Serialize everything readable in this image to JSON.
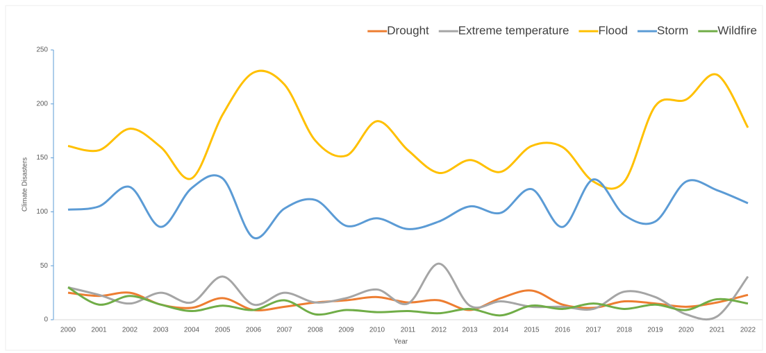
{
  "chart_data": {
    "type": "line",
    "x_label": "Year",
    "y_label": "Climate Disasters",
    "categories": [
      "2000",
      "2001",
      "2002",
      "2003",
      "2004",
      "2005",
      "2006",
      "2007",
      "2008",
      "2009",
      "2010",
      "2011",
      "2012",
      "2013",
      "2014",
      "2015",
      "2016",
      "2017",
      "2018",
      "2019",
      "2020",
      "2021",
      "2022"
    ],
    "series": [
      {
        "name": "Drought",
        "color": "#ed7d31",
        "values": [
          25,
          22,
          25,
          14,
          11,
          20,
          9,
          12,
          16,
          18,
          21,
          16,
          18,
          9,
          20,
          27,
          14,
          11,
          17,
          15,
          12,
          16,
          23
        ]
      },
      {
        "name": "Extreme temperature",
        "color": "#a5a5a5",
        "values": [
          30,
          23,
          15,
          25,
          16,
          40,
          14,
          25,
          16,
          20,
          28,
          15,
          52,
          13,
          17,
          12,
          12,
          10,
          26,
          21,
          5,
          3,
          40
        ]
      },
      {
        "name": "Flood",
        "color": "#ffc000",
        "values": [
          161,
          157,
          177,
          160,
          131,
          190,
          229,
          218,
          166,
          152,
          184,
          157,
          136,
          148,
          137,
          161,
          160,
          128,
          128,
          198,
          204,
          227,
          178
        ]
      },
      {
        "name": "Storm",
        "color": "#5b9bd5",
        "values": [
          102,
          105,
          123,
          86,
          122,
          131,
          76,
          103,
          111,
          87,
          94,
          84,
          91,
          105,
          99,
          121,
          86,
          130,
          97,
          91,
          128,
          120,
          108
        ]
      },
      {
        "name": "Wildfire",
        "color": "#70ad47",
        "values": [
          30,
          14,
          22,
          14,
          8,
          13,
          9,
          18,
          5,
          9,
          7,
          8,
          6,
          10,
          4,
          13,
          10,
          15,
          10,
          14,
          9,
          19,
          15
        ]
      }
    ],
    "ylim": [
      0,
      250
    ],
    "yticks": [
      0,
      50,
      100,
      150,
      200,
      250
    ],
    "smooth": true,
    "legend": "top-right"
  }
}
